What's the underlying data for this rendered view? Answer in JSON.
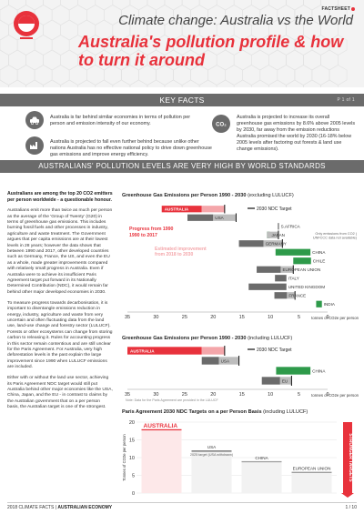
{
  "header": {
    "badge": "FACTSHEET",
    "title_line1": "Climate change: Australia vs the World",
    "title_line2": "Australia's pollution profile & how to turn it around"
  },
  "key_facts": {
    "banner": "KEY FACTS",
    "page_label": "P 1 of 1",
    "items": [
      {
        "icon": "car-icon",
        "text": "Australia is far behind similar economies in terms of pollution per person and emission intensity of our economy."
      },
      {
        "icon": "co2-icon",
        "text": "Australia is projected to increase its overall greenhouse gas emissions by 8.6% above 2005 levels by 2030, far away from the emission reductions Australia promised the world by 2030 (16-18% below 2005 levels after factoring out forests & land use change emissions)."
      },
      {
        "icon": "factory-icon",
        "text": "Australia is projected to fall even further behind because unlike other nations Australia has no effective national policy to drive down greenhouse gas emissions and improve energy efficiency."
      }
    ]
  },
  "section_banner": "AUSTRALIANS' POLLUTION LEVELS ARE VERY HIGH BY WORLD STANDARDS",
  "left_column": {
    "lead": "Australians are among the top 20 CO2 emitters per person worldwide - a questionable honour.",
    "paragraphs": [
      "Australians emit more than twice as much per person as the average of the 'Group of Twenty' (G20) in terms of greenhouse gas emissions. This includes burning fossil fuels and other processes in industry, agriculture and waste treatment. The Government argues that per capita emissions are at their lowest levels in 28 years; however the data shows that between 1990 and 2017, other developed countries such as Germany, France, the US, and even the EU as a whole, made greater improvements compared with relatively small progress in Australia. Even if Australia were to achieve its insufficient Paris Agreement target put forward in its Nationally Determined Contribution (NDC), it would remain far behind other major developed economies in 2030.",
      "To measure progress towards decarbonisation, it is important to disentangle emissions reduction in energy, industry, agriculture and waste from very uncertain and often fluctuating data from the land use, land-use change and forestry sector (LULUCF). Forests or other ecosystems can change from storing carbon to releasing it. Rules for accounting progress in this sector remain contentious and are still unclear for the Paris Agreement. For Australia, very high deforestation levels in the past explain the large improvement since 1990 when LULUCF emissions are included.",
      "Either with or without the land use sector, achieving its Paris Agreement NDC target would still put Australia behind other major economies like the USA, China, Japan, and the EU - in contrast to claims by the Australian government that on a per person basis, the Australian target is one of the strongest."
    ]
  },
  "chart_data": [
    {
      "type": "bar",
      "title": "Greenhouse Gas Emissions per Person 1990 - 2030",
      "subtitle": "(excluding LULUCF)",
      "xlabel": "tonnes of CO2e per person",
      "xlim": [
        35,
        0
      ],
      "ticks": [
        35,
        30,
        25,
        20,
        15,
        10,
        5,
        0
      ],
      "legend": "2030 NDC Target",
      "annotations": [
        "Progress from 1990 to 2017",
        "Estimated improvement from 2018 to 2030",
        "Only emissions from CO2 (UNFCCC data not available)"
      ],
      "categories": [
        "AUSTRALIA",
        "USA",
        "S.AFRICA",
        "JAPAN",
        "GERMANY",
        "CHINA",
        "CHILE",
        "EUROPEAN UNION",
        "ITALY",
        "UNITED KINGDOM",
        "FRANCE",
        "INDIA"
      ],
      "values_1990": [
        29,
        24.5,
        8.7,
        10.1,
        15.5,
        3.0,
        2.9,
        12.4,
        9.2,
        13.8,
        9.3,
        1.0
      ],
      "values_2017": [
        22,
        20.0,
        8.5,
        10.6,
        11.2,
        9.1,
        6.0,
        8.2,
        7.2,
        7.2,
        7.1,
        2.0
      ],
      "values_2030": [
        18,
        16.0,
        null,
        8.6,
        7.9,
        null,
        null,
        6.0,
        null,
        null,
        5.7,
        null
      ]
    },
    {
      "type": "bar",
      "title": "Greenhouse Gas Emissions per Person 1990 - 2030",
      "subtitle": "(including LULUCF)",
      "xlabel": "tonnes of CO2e per person",
      "xlim": [
        35,
        0
      ],
      "ticks": [
        35,
        30,
        25,
        20,
        15,
        10,
        5,
        0
      ],
      "legend": "2030 NDC Target",
      "note": "Note: Data for the Paris Agreement are provided in the LULUCF",
      "categories": [
        "AUSTRALIA",
        "USA",
        "CHINA",
        "EU"
      ],
      "values_1990": [
        35,
        22.0,
        3.0,
        11.5
      ],
      "values_2017": [
        22,
        19.0,
        9.0,
        8.3
      ],
      "values_2030": [
        18,
        15.5,
        null,
        6.3
      ]
    },
    {
      "type": "bar",
      "title": "Paris Agreement 2030 NDC Targets on a per Person Basis",
      "subtitle": "(including LULUCF)",
      "ylabel": "Tonnes of CO2e per person",
      "ylim": [
        0,
        20
      ],
      "ticks": [
        20,
        15,
        10,
        5,
        0
      ],
      "side_label": "STRONGER TARGETS",
      "categories": [
        "AUSTRALIA",
        "USA",
        "CHINA",
        "EUROPEAN UNION"
      ],
      "notes": [
        "",
        "2025 target (USA withdrawn)",
        "",
        ""
      ],
      "values": [
        18,
        12,
        9,
        6
      ]
    }
  ],
  "footer": {
    "left_bold": "2018 CLIMATE FACTS",
    "left_sep": " | ",
    "left_topic": "AUSTRALIAN ECONOMY",
    "page": "1 / 10"
  },
  "colors": {
    "accent": "#e8323c",
    "pink": "#f4a6aa",
    "grey": "#6b6b6b",
    "green": "#2e9a4a",
    "light_green": "#a9d7b2"
  }
}
